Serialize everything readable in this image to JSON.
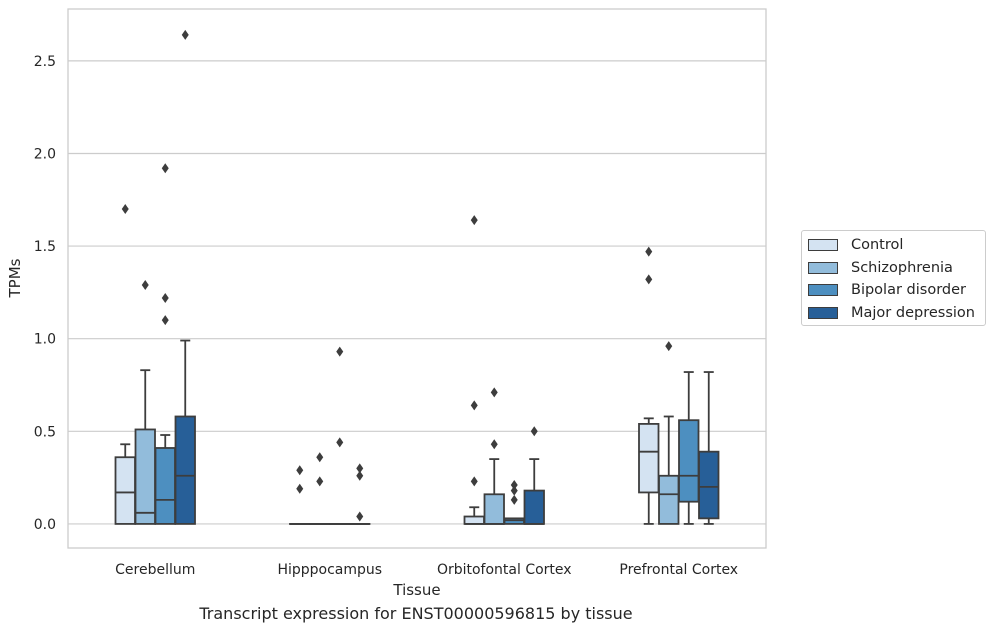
{
  "caption": "Transcript expression for ENST00000596815 by tissue",
  "colors": {
    "control": "#d4e3f2",
    "schizophrenia": "#92bcdb",
    "bipolar": "#4d8fc0",
    "depression": "#275f98",
    "edge": "#3d3d3d",
    "grid": "#cccccc"
  },
  "chart_data": {
    "type": "box",
    "title": "",
    "xlabel": "Tissue",
    "ylabel": "TPMs",
    "ylim": [
      -0.13,
      2.78
    ],
    "yticks": [
      0.0,
      0.5,
      1.0,
      1.5,
      2.0,
      2.5
    ],
    "ytick_labels": [
      "0.0",
      "0.5",
      "1.0",
      "1.5",
      "2.0",
      "2.5"
    ],
    "grid": true,
    "legend_position": "right",
    "categories": [
      "Cerebellum",
      "Hipppocampus",
      "Orbitofontal Cortex",
      "Prefrontal Cortex"
    ],
    "series": [
      {
        "name": "Control",
        "boxes": [
          {
            "whislo": 0.0,
            "q1": 0.0,
            "med": 0.17,
            "q3": 0.36,
            "whishi": 0.43,
            "fliers": [
              1.7
            ]
          },
          {
            "whislo": 0.0,
            "q1": 0.0,
            "med": 0.0,
            "q3": 0.0,
            "whishi": 0.0,
            "fliers": [
              0.29,
              0.19
            ]
          },
          {
            "whislo": 0.0,
            "q1": 0.0,
            "med": 0.0,
            "q3": 0.04,
            "whishi": 0.09,
            "fliers": [
              1.64,
              0.64,
              0.23
            ]
          },
          {
            "whislo": 0.0,
            "q1": 0.17,
            "med": 0.39,
            "q3": 0.54,
            "whishi": 0.57,
            "fliers": [
              1.47,
              1.32
            ]
          }
        ]
      },
      {
        "name": "Schizophrenia",
        "boxes": [
          {
            "whislo": 0.0,
            "q1": 0.0,
            "med": 0.06,
            "q3": 0.51,
            "whishi": 0.83,
            "fliers": [
              1.29
            ]
          },
          {
            "whislo": 0.0,
            "q1": 0.0,
            "med": 0.0,
            "q3": 0.0,
            "whishi": 0.0,
            "fliers": [
              0.36,
              0.23
            ]
          },
          {
            "whislo": 0.0,
            "q1": 0.0,
            "med": 0.0,
            "q3": 0.16,
            "whishi": 0.35,
            "fliers": [
              0.71,
              0.43
            ]
          },
          {
            "whislo": 0.0,
            "q1": 0.0,
            "med": 0.16,
            "q3": 0.26,
            "whishi": 0.58,
            "fliers": [
              0.96
            ]
          }
        ]
      },
      {
        "name": "Bipolar disorder",
        "boxes": [
          {
            "whislo": 0.0,
            "q1": 0.0,
            "med": 0.13,
            "q3": 0.41,
            "whishi": 0.48,
            "fliers": [
              1.92,
              1.22,
              1.1
            ]
          },
          {
            "whislo": 0.0,
            "q1": 0.0,
            "med": 0.0,
            "q3": 0.0,
            "whishi": 0.0,
            "fliers": [
              0.93,
              0.44
            ]
          },
          {
            "whislo": 0.0,
            "q1": 0.0,
            "med": 0.02,
            "q3": 0.03,
            "whishi": 0.03,
            "fliers": [
              0.21,
              0.18,
              0.13
            ]
          },
          {
            "whislo": 0.0,
            "q1": 0.12,
            "med": 0.26,
            "q3": 0.56,
            "whishi": 0.82,
            "fliers": []
          }
        ]
      },
      {
        "name": "Major depression",
        "boxes": [
          {
            "whislo": 0.0,
            "q1": 0.0,
            "med": 0.26,
            "q3": 0.58,
            "whishi": 0.99,
            "fliers": [
              2.64
            ]
          },
          {
            "whislo": 0.0,
            "q1": 0.0,
            "med": 0.0,
            "q3": 0.0,
            "whishi": 0.0,
            "fliers": [
              0.3,
              0.26,
              0.04
            ]
          },
          {
            "whislo": 0.0,
            "q1": 0.0,
            "med": 0.0,
            "q3": 0.18,
            "whishi": 0.35,
            "fliers": [
              0.5
            ]
          },
          {
            "whislo": 0.0,
            "q1": 0.03,
            "med": 0.2,
            "q3": 0.39,
            "whishi": 0.82,
            "fliers": []
          }
        ]
      }
    ]
  }
}
